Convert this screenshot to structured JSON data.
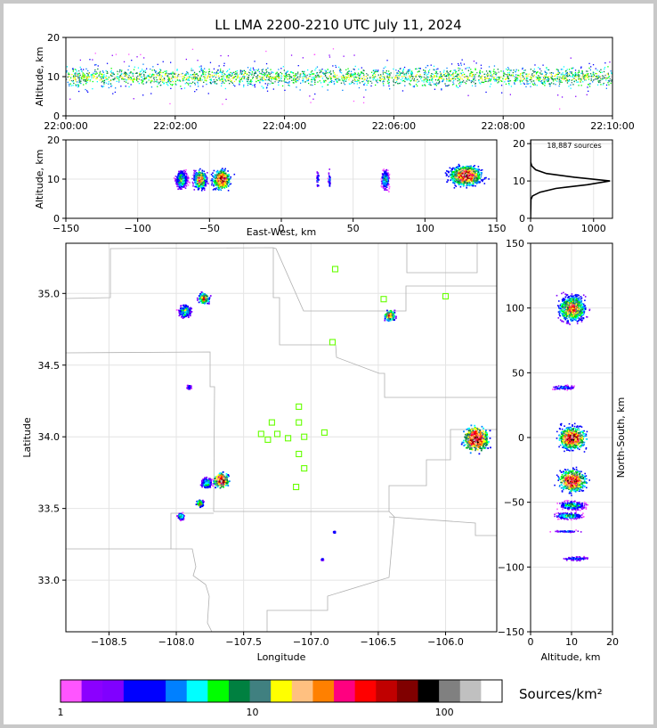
{
  "chart_data": [
    {
      "panel": "time-altitude",
      "type": "scatter",
      "title": "LL LMA 2200-2210 UTC July 11, 2024",
      "ylabel": "Altitude, km",
      "ylim": [
        0,
        20
      ],
      "xlim_seconds": [
        0,
        600
      ],
      "xticks": [
        "22:00:00",
        "22:02:00",
        "22:04:00",
        "22:06:00",
        "22:08:00",
        "22:10:00"
      ],
      "yticks": [
        "0",
        "10",
        "20"
      ],
      "description_core_altitude_km": [
        8,
        12
      ],
      "grid": true
    },
    {
      "panel": "east-west-altitude",
      "type": "heatmap",
      "xlabel": "East-West, km",
      "ylabel": "Altitude, km",
      "xlim": [
        -150,
        150
      ],
      "ylim": [
        0,
        20
      ],
      "xticks": [
        "−150",
        "−100",
        "−50",
        "0",
        "50",
        "100",
        "150"
      ],
      "yticks": [
        "0",
        "10",
        "20"
      ],
      "clusters": [
        {
          "x": -70,
          "alt": 10,
          "halfwidth": 5,
          "density": "medium"
        },
        {
          "x": -57,
          "alt": 10,
          "halfwidth": 5,
          "density": "high"
        },
        {
          "x": -42,
          "alt": 10,
          "halfwidth": 7,
          "density": "very-high"
        },
        {
          "x": 25,
          "alt": 10,
          "halfwidth": 1,
          "density": "low"
        },
        {
          "x": 33,
          "alt": 10,
          "halfwidth": 1,
          "density": "low"
        },
        {
          "x": 72,
          "alt": 10,
          "halfwidth": 3,
          "density": "medium"
        },
        {
          "x": 128,
          "alt": 11,
          "halfwidth": 13,
          "density": "very-high"
        }
      ],
      "grid": true
    },
    {
      "panel": "altitude-histogram",
      "type": "line",
      "annotation": "18,887 sources",
      "xlim": [
        0,
        1300
      ],
      "ylim": [
        0,
        21
      ],
      "xticks": [
        "0",
        "1000"
      ],
      "yticks": [
        "0",
        "10",
        "20"
      ],
      "profile": [
        {
          "alt": 0,
          "count": 0
        },
        {
          "alt": 5,
          "count": 5
        },
        {
          "alt": 6,
          "count": 30
        },
        {
          "alt": 7,
          "count": 150
        },
        {
          "alt": 8,
          "count": 400
        },
        {
          "alt": 9,
          "count": 900
        },
        {
          "alt": 10,
          "count": 1260
        },
        {
          "alt": 11,
          "count": 700
        },
        {
          "alt": 12,
          "count": 250
        },
        {
          "alt": 13,
          "count": 80
        },
        {
          "alt": 14,
          "count": 20
        },
        {
          "alt": 15,
          "count": 2
        },
        {
          "alt": 21,
          "count": 0
        }
      ]
    },
    {
      "panel": "plan-view",
      "type": "heatmap",
      "xlabel": "Longitude",
      "ylabel": "Latitude",
      "xlim": [
        -108.82,
        -105.62
      ],
      "ylim": [
        32.64,
        35.35
      ],
      "xticks": [
        "−108.5",
        "−108.0",
        "−107.5",
        "−107.0",
        "−106.5",
        "−106.0"
      ],
      "yticks": [
        "33.0",
        "33.5",
        "34.0",
        "34.5",
        "35.0"
      ],
      "clusters": [
        {
          "lon": -107.94,
          "lat": 34.88,
          "size": 0.06,
          "density": "medium"
        },
        {
          "lon": -107.8,
          "lat": 34.97,
          "size": 0.05,
          "density": "high"
        },
        {
          "lon": -107.91,
          "lat": 34.35,
          "size": 0.02,
          "density": "low"
        },
        {
          "lon": -106.42,
          "lat": 34.85,
          "size": 0.05,
          "density": "high"
        },
        {
          "lon": -105.78,
          "lat": 33.99,
          "size": 0.12,
          "density": "very-high"
        },
        {
          "lon": -107.67,
          "lat": 33.7,
          "size": 0.07,
          "density": "very-high"
        },
        {
          "lon": -107.78,
          "lat": 33.68,
          "size": 0.05,
          "density": "medium"
        },
        {
          "lon": -107.83,
          "lat": 33.54,
          "size": 0.03,
          "density": "high"
        },
        {
          "lon": -107.97,
          "lat": 33.45,
          "size": 0.03,
          "density": "medium"
        },
        {
          "lon": -106.92,
          "lat": 33.15,
          "size": 0.01,
          "density": "low"
        },
        {
          "lon": -106.83,
          "lat": 33.34,
          "size": 0.01,
          "density": "low"
        }
      ],
      "stations": [
        [
          -106.82,
          35.17
        ],
        [
          -106.46,
          34.96
        ],
        [
          -106.0,
          34.98
        ],
        [
          -106.84,
          34.66
        ],
        [
          -107.09,
          34.21
        ],
        [
          -107.29,
          34.1
        ],
        [
          -107.09,
          34.1
        ],
        [
          -107.37,
          34.02
        ],
        [
          -107.25,
          34.02
        ],
        [
          -107.17,
          33.99
        ],
        [
          -107.05,
          34.0
        ],
        [
          -106.9,
          34.03
        ],
        [
          -107.32,
          33.98
        ],
        [
          -107.09,
          33.88
        ],
        [
          -107.05,
          33.78
        ],
        [
          -107.11,
          33.65
        ]
      ],
      "grid": true
    },
    {
      "panel": "altitude-north-south",
      "type": "heatmap",
      "xlabel": "Altitude, km",
      "ylabel": "North-South, km",
      "xlim": [
        0,
        20
      ],
      "ylim": [
        -150,
        150
      ],
      "xticks": [
        "0",
        "10",
        "20"
      ],
      "yticks": [
        "−150",
        "−100",
        "−50",
        "0",
        "50",
        "100",
        "150"
      ],
      "clusters": [
        {
          "alt": 10,
          "ns": 100,
          "halfheight": 12,
          "density": "high"
        },
        {
          "alt": 8,
          "ns": 39,
          "halfheight": 2,
          "density": "low"
        },
        {
          "alt": 10,
          "ns": 0,
          "halfheight": 10,
          "density": "very-high"
        },
        {
          "alt": 10,
          "ns": -33,
          "halfheight": 10,
          "density": "very-high"
        },
        {
          "alt": 10,
          "ns": -52,
          "halfheight": 4,
          "density": "medium"
        },
        {
          "alt": 9,
          "ns": -60,
          "halfheight": 3,
          "density": "medium"
        },
        {
          "alt": 9,
          "ns": -72,
          "halfheight": 1,
          "density": "low"
        },
        {
          "alt": 11,
          "ns": -93,
          "halfheight": 2,
          "density": "low"
        }
      ],
      "grid": true
    },
    {
      "panel": "colorbar",
      "type": "colorbar",
      "label": "Sources/km²",
      "scale": "log",
      "range": [
        1,
        200
      ],
      "ticks": [
        "1",
        "10",
        "100"
      ],
      "colors": [
        "#ff55ff",
        "#8b00ff",
        "#8000ff",
        "#0000ff",
        "#0000ff",
        "#0080ff",
        "#00ffff",
        "#00ff00",
        "#008040",
        "#408080",
        "#ffff00",
        "#ffc080",
        "#ff8000",
        "#ff0080",
        "#ff0000",
        "#c00000",
        "#800000",
        "#000000",
        "#808080",
        "#c0c0c0",
        "#ffffff"
      ]
    }
  ]
}
